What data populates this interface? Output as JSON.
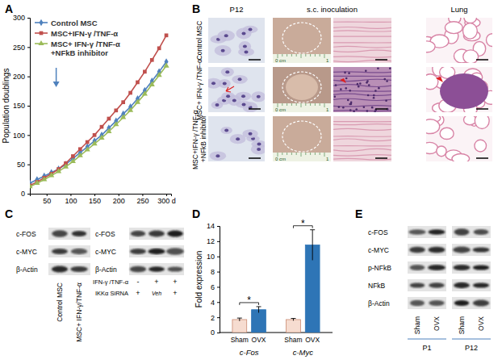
{
  "chart_data": [
    {
      "type": "line",
      "title": "A",
      "ylabel": "Population doublings",
      "x": [
        15,
        30,
        45,
        60,
        75,
        90,
        105,
        120,
        135,
        150,
        165,
        180,
        195,
        210,
        225,
        240,
        255,
        270,
        285,
        300
      ],
      "xlim": [
        15,
        310
      ],
      "xticks": [
        50,
        100,
        150,
        200,
        250,
        {
          "value": 300,
          "label": "300 d"
        }
      ],
      "ylim": [
        0,
        300
      ],
      "yticks": [
        0,
        50,
        100,
        150,
        200,
        250,
        300
      ],
      "legend": "upper left",
      "series": [
        {
          "name": "Control MSC",
          "color": "#4f81bd",
          "marker": "diamond",
          "values": [
            18,
            24,
            30,
            36,
            42,
            50,
            60,
            70,
            80,
            90,
            100,
            112,
            124,
            136,
            148,
            162,
            176,
            192,
            208,
            225
          ]
        },
        {
          "name": "MSC+IFN-γ /TNF-α",
          "color": "#c0504d",
          "marker": "square",
          "values": [
            14,
            20,
            27,
            34,
            42,
            52,
            64,
            76,
            88,
            100,
            114,
            128,
            142,
            156,
            172,
            190,
            208,
            228,
            248,
            270
          ]
        },
        {
          "name": "MSC+ IFN-γ /TNF-α +NFkB inhibitor",
          "color": "#9bbb59",
          "marker": "triangle",
          "values": [
            12,
            18,
            24,
            31,
            38,
            46,
            55,
            65,
            75,
            85,
            95,
            106,
            118,
            130,
            142,
            156,
            170,
            186,
            202,
            218
          ]
        }
      ]
    },
    {
      "type": "bar",
      "title": "D",
      "ylabel": "Fold expression",
      "categories": [
        "Sham",
        "OVX",
        "Sham",
        "OVX"
      ],
      "group_labels": [
        "c-Fos",
        "c-Myc"
      ],
      "values": [
        1.7,
        3.0,
        1.7,
        11.5
      ],
      "errors": [
        0.2,
        0.4,
        0.15,
        2.0
      ],
      "colors": [
        "#f6dcd0",
        "#2e75b6",
        "#f6dcd0",
        "#2e75b6"
      ],
      "significance": [
        "*",
        "*"
      ],
      "ylim": [
        0,
        14
      ],
      "yticks": [
        0,
        2,
        4,
        6,
        8,
        10,
        12,
        14
      ]
    }
  ],
  "panels": {
    "B": {
      "label": "B",
      "columns": [
        "P12",
        "s.c. inoculation",
        "Lung"
      ],
      "rows": [
        "Control MSC",
        "MSC+ IFN-γ /TNF-α",
        "MSC+IFN-γ /TNF-α +NFkB inhibitor"
      ],
      "ruler": {
        "start": "0 cm",
        "end": "1"
      }
    },
    "C": {
      "label": "C",
      "left": {
        "rows": [
          "c-FOS",
          "c-MYC",
          "β-Actin"
        ],
        "lanes": [
          "Control MSC",
          "MSC+ IFN-γ/TNF-α"
        ]
      },
      "right": {
        "rows": [
          "c-FOS",
          "c-MYC",
          "β-Actin"
        ],
        "conditions": [
          {
            "name": "IFN-γ /TNF-α",
            "values": [
              "-",
              "+",
              "+"
            ]
          },
          {
            "name": "IKKα SiRNA",
            "values": [
              "+",
              "Veh",
              "+"
            ]
          }
        ]
      }
    },
    "E": {
      "label": "E",
      "rows": [
        "c-FOS",
        "c-MYC",
        "p-NFkB",
        "NFkB",
        "β-Actin"
      ],
      "lanes": [
        "Sham",
        "OVX",
        "Sham",
        "OVX"
      ],
      "groups": [
        "P1",
        "P12"
      ]
    }
  }
}
